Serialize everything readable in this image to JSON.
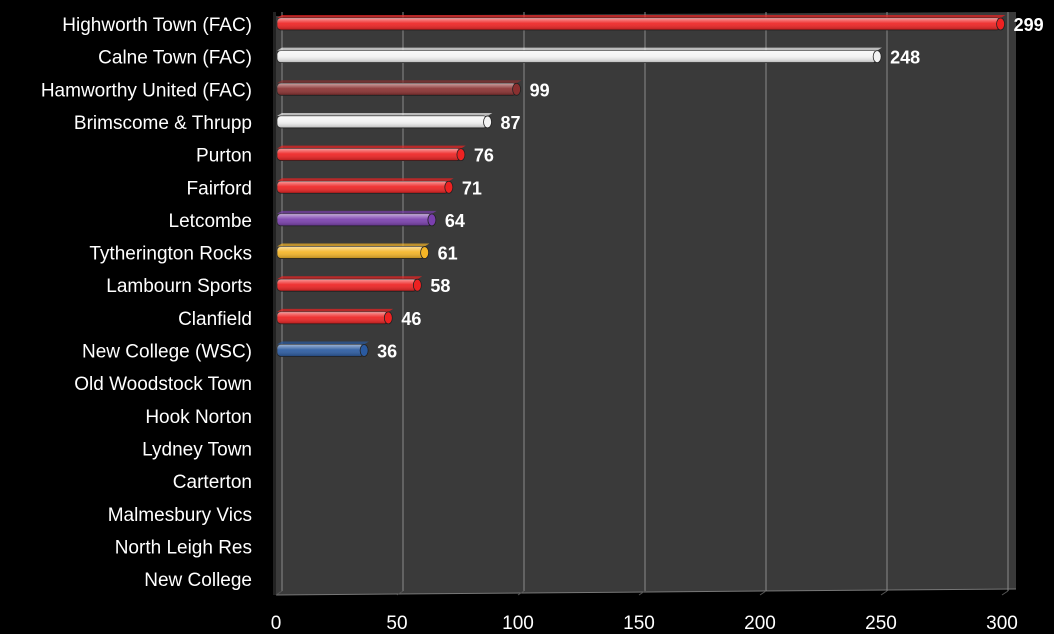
{
  "chart_data": {
    "type": "bar",
    "orientation": "horizontal",
    "title": "",
    "xlabel": "",
    "ylabel": "",
    "xlim": [
      0,
      300
    ],
    "xticks": [
      0,
      50,
      100,
      150,
      200,
      250,
      300
    ],
    "grid": true,
    "legend": "none",
    "background_color": "#000000",
    "plot_area_color": "#3a3a3a",
    "gridline_color": "#8a8a8a",
    "categories": [
      "Highworth Town (FAC)",
      "Calne Town (FAC)",
      "Hamworthy United (FAC)",
      "Brimscome & Thrupp",
      "Purton",
      "Fairford",
      "Letcombe",
      "Tytherington Rocks",
      "Lambourn Sports",
      "Clanfield",
      "New College (WSC)",
      "Old Woodstock Town",
      "Hook Norton",
      "Lydney Town",
      "Carterton",
      "Malmesbury Vics",
      "North Leigh Res",
      "New College"
    ],
    "values": [
      299,
      248,
      99,
      87,
      76,
      71,
      64,
      61,
      58,
      46,
      36,
      null,
      null,
      null,
      null,
      null,
      null,
      null
    ],
    "data_labels": [
      "299",
      "248",
      "99",
      "87",
      "76",
      "71",
      "64",
      "61",
      "58",
      "46",
      "36",
      "",
      "",
      "",
      "",
      "",
      "",
      ""
    ],
    "bar_colors": [
      "#ee2222",
      "#f2f2f2",
      "#8a3030",
      "#f2f2f2",
      "#ee2222",
      "#ee2222",
      "#7a3fae",
      "#f5b526",
      "#ee2222",
      "#ee2222",
      "#2a5aa0",
      "#ee2222",
      "#ee2222",
      "#ee2222",
      "#ee2222",
      "#ee2222",
      "#ee2222",
      "#ee2222"
    ]
  }
}
